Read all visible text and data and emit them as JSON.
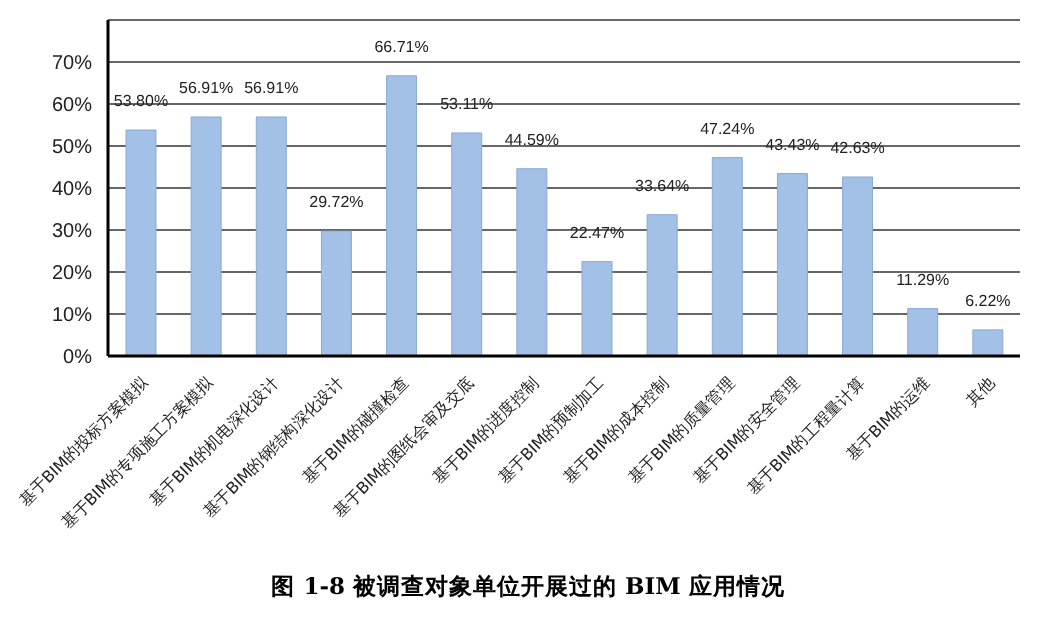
{
  "chart_data": {
    "type": "bar",
    "categories": [
      "基于BIM的投标方案模拟",
      "基于BIM的专项施工方案模拟",
      "基于BIM的机电深化设计",
      "基于BIM的钢结构深化设计",
      "基于BIM的碰撞检查",
      "基于BIM的图纸会审及交底",
      "基于BIM的进度控制",
      "基于BIM的预制加工",
      "基于BIM的成本控制",
      "基于BIM的质量管理",
      "基于BIM的安全管理",
      "基于BIM的工程量计算",
      "基于BIM的运维",
      "其他"
    ],
    "values": [
      53.8,
      56.91,
      56.91,
      29.72,
      66.71,
      53.11,
      44.59,
      22.47,
      33.64,
      47.24,
      43.43,
      42.63,
      11.29,
      6.22
    ],
    "value_labels": [
      "53.80%",
      "56.91%",
      "56.91%",
      "29.72%",
      "66.71%",
      "53.11%",
      "44.59%",
      "22.47%",
      "33.64%",
      "47.24%",
      "43.43%",
      "42.63%",
      "11.29%",
      "6.22%"
    ],
    "color": "#a3c1e6",
    "ylim": [
      0,
      80
    ],
    "yticks": [
      {
        "value": 0,
        "label": "0%"
      },
      {
        "value": 10,
        "label": "10%"
      },
      {
        "value": 20,
        "label": "20%"
      },
      {
        "value": 30,
        "label": "30%"
      },
      {
        "value": 40,
        "label": "40%"
      },
      {
        "value": 50,
        "label": "50%"
      },
      {
        "value": 60,
        "label": "60%"
      },
      {
        "value": 70,
        "label": "70%"
      },
      {
        "value": 80,
        "label": null
      }
    ],
    "grid": "y",
    "annotations": [
      "图 1-8  被调查对象单位开展过的 BIM 应用情况"
    ]
  }
}
